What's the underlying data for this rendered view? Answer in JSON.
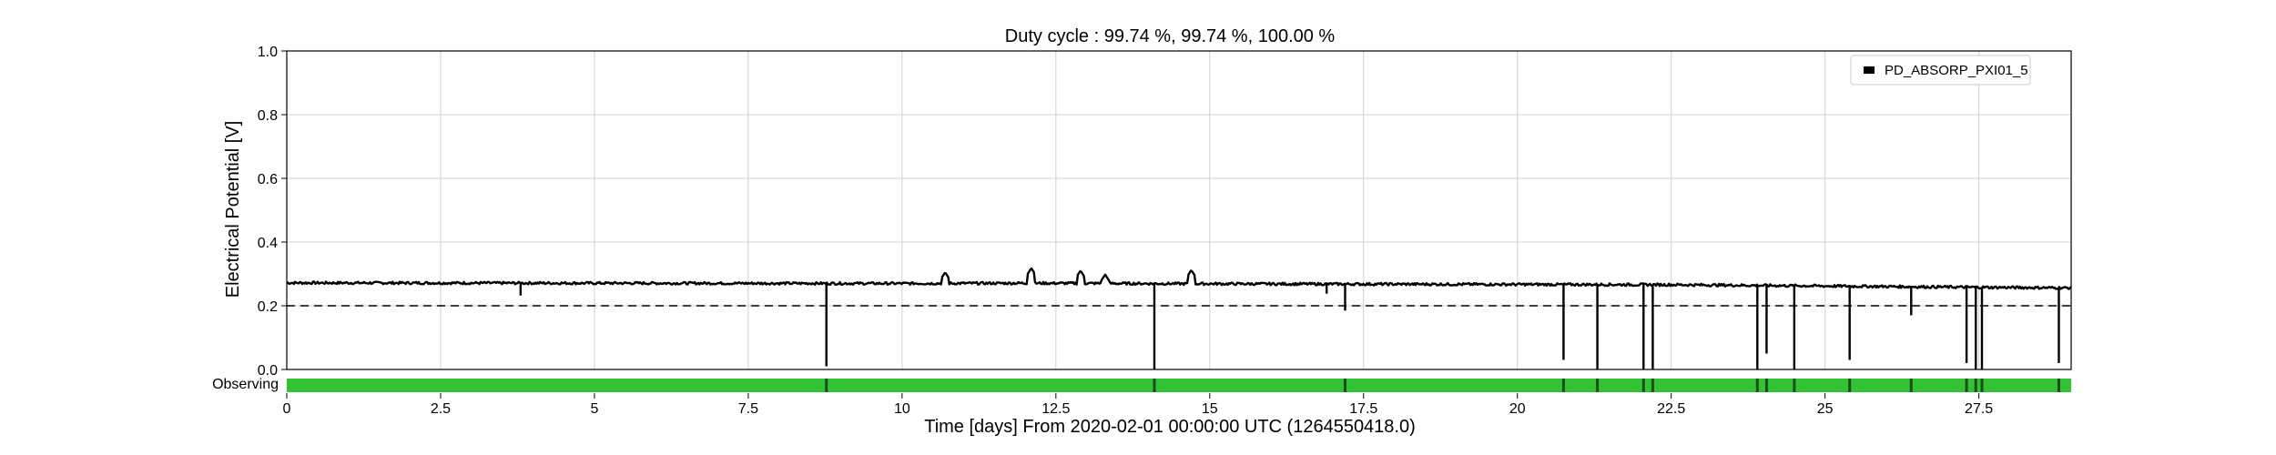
{
  "chart_data": {
    "type": "line",
    "title": "Duty cycle : 99.74 %, 99.74 %, 100.00 %",
    "xlabel": "Time [days] From 2020-02-01 00:00:00 UTC (1264550418.0)",
    "ylabel": "Electrical Potential [V]",
    "xlim": [
      0,
      29
    ],
    "ylim": [
      0.0,
      1.0
    ],
    "x_ticks": [
      0,
      2.5,
      5,
      7.5,
      10,
      12.5,
      15,
      17.5,
      20,
      22.5,
      25,
      27.5
    ],
    "x_tick_labels": [
      "0",
      "2.5",
      "5",
      "7.5",
      "10",
      "12.5",
      "15",
      "17.5",
      "20",
      "22.5",
      "25",
      "27.5"
    ],
    "y_ticks": [
      0.0,
      0.2,
      0.4,
      0.6,
      0.8,
      1.0
    ],
    "y_tick_labels": [
      "0.0",
      "0.2",
      "0.4",
      "0.6",
      "0.8",
      "1.0"
    ],
    "grid": true,
    "legend_position": "top-right",
    "threshold": 0.2,
    "series": [
      {
        "name": "PD_ABSORP_PXI01_5",
        "color": "#000000",
        "baseline": [
          [
            0,
            0.272
          ],
          [
            5,
            0.271
          ],
          [
            10,
            0.27
          ],
          [
            12,
            0.271
          ],
          [
            15,
            0.269
          ],
          [
            17.5,
            0.268
          ],
          [
            20,
            0.267
          ],
          [
            22.5,
            0.266
          ],
          [
            25,
            0.262
          ],
          [
            27.5,
            0.258
          ],
          [
            29,
            0.256
          ]
        ],
        "noise": 0.004,
        "spikes_up": [
          [
            10.7,
            0.305
          ],
          [
            12.1,
            0.318
          ],
          [
            12.9,
            0.31
          ],
          [
            13.3,
            0.298
          ],
          [
            14.7,
            0.312
          ]
        ],
        "dips": [
          [
            3.8,
            0.232
          ],
          [
            8.77,
            0.01
          ],
          [
            14.1,
            0.0
          ],
          [
            16.9,
            0.238
          ],
          [
            17.2,
            0.185
          ],
          [
            20.75,
            0.03
          ],
          [
            21.3,
            0.0
          ],
          [
            22.05,
            0.0
          ],
          [
            22.2,
            0.0
          ],
          [
            23.9,
            0.0
          ],
          [
            24.05,
            0.05
          ],
          [
            24.5,
            0.0
          ],
          [
            25.4,
            0.03
          ],
          [
            26.4,
            0.17
          ],
          [
            27.3,
            0.02
          ],
          [
            27.45,
            0.0
          ],
          [
            27.55,
            0.0
          ],
          [
            28.8,
            0.02
          ]
        ]
      }
    ],
    "state_bar": {
      "label": "Observing",
      "color": "#33c233",
      "off_color": "#1a4d1a",
      "off_at": [
        8.77,
        14.1,
        17.2,
        20.75,
        21.3,
        22.05,
        22.2,
        23.9,
        24.05,
        24.5,
        25.4,
        26.4,
        27.3,
        27.45,
        27.55,
        28.8
      ]
    }
  }
}
